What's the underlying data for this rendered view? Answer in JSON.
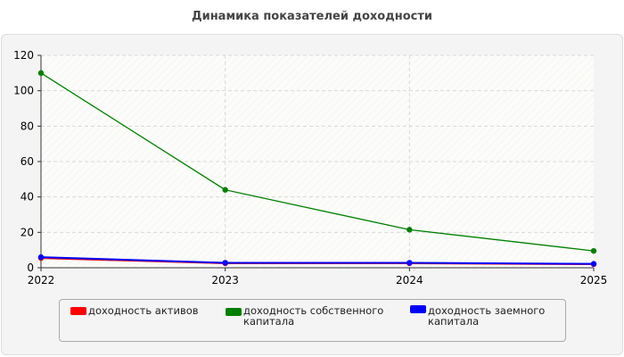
{
  "chart_data": {
    "type": "line",
    "title": "Динамика показателей доходности",
    "x": [
      "2022",
      "2023",
      "2024",
      "2025"
    ],
    "ylim": [
      0,
      120
    ],
    "yticks": [
      0,
      20,
      40,
      60,
      80,
      100,
      120
    ],
    "grid": true,
    "legend_position": "bottom",
    "series": [
      {
        "name": "доходность активов",
        "color": "#ff0000",
        "values": [
          5.5,
          2.5,
          2.5,
          2.0
        ]
      },
      {
        "name": "доходность собственного капитала",
        "color": "#008000",
        "values": [
          110,
          44,
          21.5,
          9.5
        ]
      },
      {
        "name": "доходность заемного капитала",
        "color": "#0000ff",
        "values": [
          6.0,
          2.8,
          2.8,
          2.2
        ]
      }
    ]
  }
}
